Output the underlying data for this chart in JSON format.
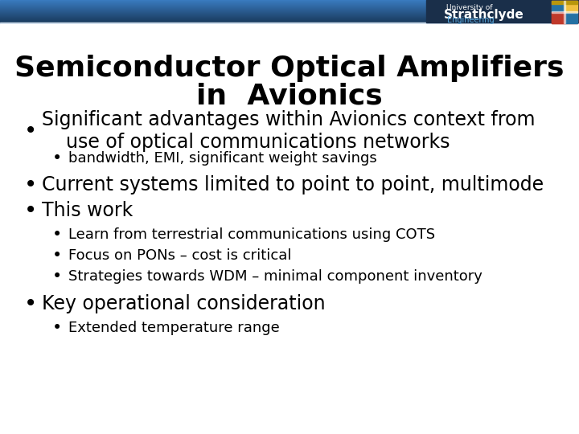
{
  "title_line1": "Semiconductor Optical Amplifiers",
  "title_line2": "in  Avionics",
  "background_color": "#ffffff",
  "top_bar_dark": "#1a3a5c",
  "top_bar_light": "#3a7bbf",
  "top_bar_white": "#d0dff0",
  "title_color": "#000000",
  "bullet_color": "#000000",
  "bullet_items": [
    {
      "level": 1,
      "text": "Significant advantages within Avionics context from\n    use of optical communications networks"
    },
    {
      "level": 2,
      "text": "bandwidth, EMI, significant weight savings"
    },
    {
      "level": 1,
      "text": "Current systems limited to point to point, multimode"
    },
    {
      "level": 1,
      "text": "This work"
    },
    {
      "level": 2,
      "text": "Learn from terrestrial communications using COTS"
    },
    {
      "level": 2,
      "text": "Focus on PONs – cost is critical"
    },
    {
      "level": 2,
      "text": "Strategies towards WDM – minimal component inventory"
    },
    {
      "level": 1,
      "text": "Key operational consideration"
    },
    {
      "level": 2,
      "text": "Extended temperature range"
    }
  ],
  "title_fontsize": 26,
  "bullet1_fontsize": 17,
  "bullet2_fontsize": 13
}
